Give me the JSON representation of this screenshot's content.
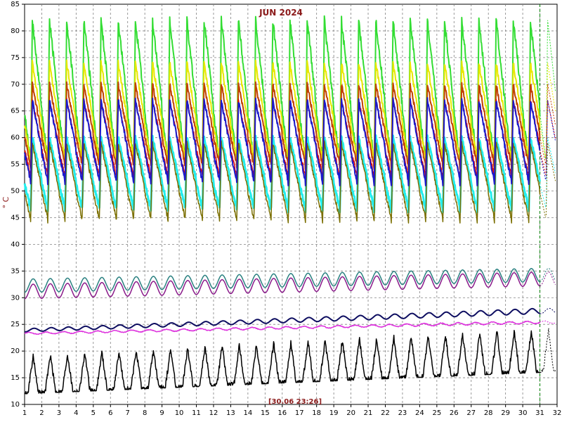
{
  "chart_data": {
    "type": "line",
    "title": "JUN 2024",
    "ylabel": "° C",
    "timestamp_label": "[30.06 23:26]",
    "xlim": [
      1,
      32
    ],
    "ylim": [
      10,
      85
    ],
    "x_ticks": [
      "1",
      "2",
      "3",
      "4",
      "5",
      "6",
      "7",
      "8",
      "9",
      "10",
      "11",
      "12",
      "13",
      "14",
      "15",
      "16",
      "17",
      "18",
      "19",
      "20",
      "21",
      "22",
      "23",
      "24",
      "25",
      "26",
      "27",
      "28",
      "29",
      "30",
      "31",
      "32"
    ],
    "y_ticks": [
      "10",
      "15",
      "20",
      "25",
      "30",
      "35",
      "40",
      "45",
      "50",
      "55",
      "60",
      "65",
      "70",
      "75",
      "80",
      "85"
    ],
    "current_time_x": 31.0,
    "grid": true,
    "colors": {
      "green": "#33dd33",
      "yellow": "#e8e800",
      "orange": "#c04000",
      "red": "#e00000",
      "blue": "#1a1acc",
      "cyan": "#22eeee",
      "olive": "#7a6e00",
      "teal": "#2a8080",
      "purple": "#8a1a8a",
      "navy": "#0d0d60",
      "magenta": "#dd33dd",
      "black": "#000000",
      "grid": "#808080",
      "title": "#8b1a1a",
      "cursor": "#008000"
    },
    "series": [
      {
        "key": "green",
        "label": "",
        "color": "#33dd33",
        "profile": "saw",
        "min": 54.0,
        "max": 82.0,
        "width": 2.0
      },
      {
        "key": "yellow",
        "label": "",
        "color": "#e8e800",
        "profile": "saw",
        "min": 55.0,
        "max": 74.0,
        "width": 2.0
      },
      {
        "key": "orange",
        "label": "",
        "color": "#c04000",
        "profile": "saw",
        "min": 54.0,
        "max": 70.0,
        "width": 2.0
      },
      {
        "key": "red",
        "label": "",
        "color": "#e00000",
        "profile": "saw",
        "min": 52.0,
        "max": 67.0,
        "width": 1.5
      },
      {
        "key": "cyan",
        "label": "",
        "color": "#22eeee",
        "profile": "saw",
        "min": 46.0,
        "max": 60.0,
        "width": 3.0
      },
      {
        "key": "olive",
        "label": "",
        "color": "#7a6e00",
        "profile": "decay",
        "min": 44.0,
        "max": 59.0,
        "width": 1.5
      },
      {
        "key": "blue",
        "label": "",
        "color": "#1a1acc",
        "profile": "saw",
        "min": 51.0,
        "max": 67.0,
        "width": 2.0
      },
      {
        "key": "teal",
        "label": "",
        "color": "#2a8080",
        "profile": "smooth",
        "min": 31.0,
        "max": 33.5,
        "end_min": 33.0,
        "end_max": 35.5,
        "width": 1.5
      },
      {
        "key": "purple",
        "label": "",
        "color": "#8a1a8a",
        "profile": "smooth",
        "min": 29.8,
        "max": 32.5,
        "end_min": 32.2,
        "end_max": 34.8,
        "width": 1.5
      },
      {
        "key": "navy",
        "label": "",
        "color": "#0d0d60",
        "profile": "gentle",
        "min": 23.6,
        "max": 24.2,
        "end_min": 27.0,
        "end_max": 28.0,
        "width": 2.0
      },
      {
        "key": "magenta",
        "label": "",
        "color": "#dd33dd",
        "profile": "flat",
        "min": 23.0,
        "max": 23.6,
        "end_min": 25.0,
        "end_max": 25.8,
        "width": 1.5
      },
      {
        "key": "black",
        "label": "",
        "color": "#000000",
        "profile": "peaks",
        "min": 12.0,
        "max": 19.0,
        "end_min": 16.0,
        "end_max": 24.0,
        "width": 1.5
      }
    ]
  }
}
